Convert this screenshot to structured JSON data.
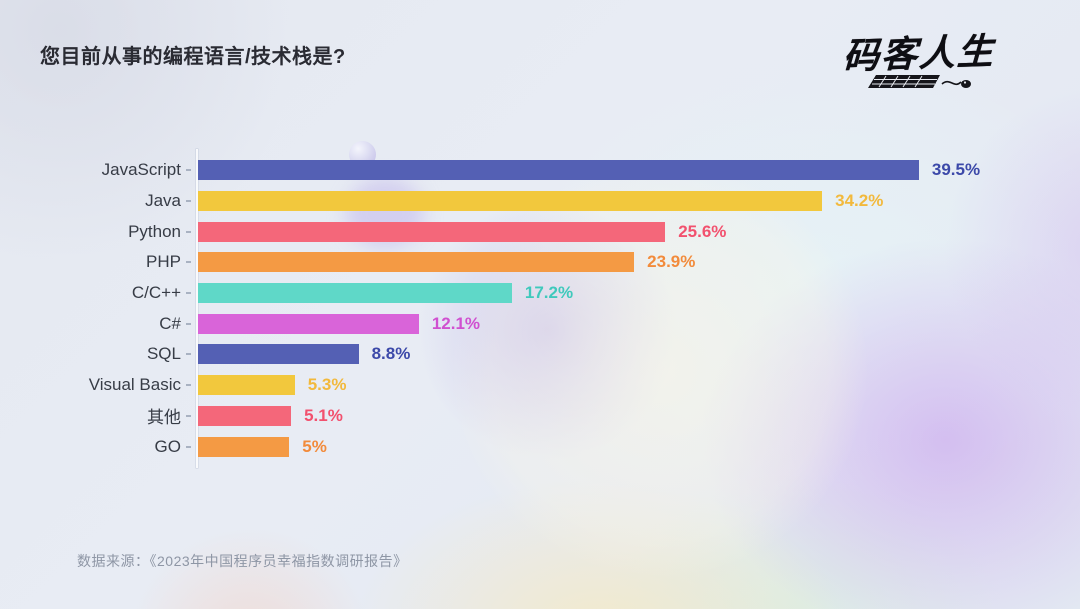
{
  "header": {
    "title": "您目前从事的编程语言/技术栈是?",
    "logo_text": "码客人生"
  },
  "footer": {
    "source": "数据来源：《2023年中国程序员幸福指数调研报告》"
  },
  "chart_data": {
    "type": "bar",
    "orientation": "horizontal",
    "title": "您目前从事的编程语言/技术栈是?",
    "categories": [
      "JavaScript",
      "Java",
      "Python",
      "PHP",
      "C/C++",
      "C#",
      "SQL",
      "Visual Basic",
      "其他",
      "GO"
    ],
    "values": [
      39.5,
      34.2,
      25.6,
      23.9,
      17.2,
      12.1,
      8.8,
      5.3,
      5.1,
      5
    ],
    "value_labels": [
      "39.5%",
      "34.2%",
      "25.6%",
      "23.9%",
      "17.2%",
      "12.1%",
      "8.8%",
      "5.3%",
      "5.1%",
      "5%"
    ],
    "bar_colors": [
      "#5460b4",
      "#f2c83d",
      "#f4677a",
      "#f49a44",
      "#5fd8c8",
      "#d964d9",
      "#5460b4",
      "#f2c83d",
      "#f4677a",
      "#f49a44"
    ],
    "value_label_colors": [
      "#3c49a9",
      "#f2b93c",
      "#f2516e",
      "#f28b3b",
      "#3fc9bc",
      "#d050d0",
      "#3c49a9",
      "#f2b93c",
      "#f2516e",
      "#f28b3b"
    ],
    "xlim": [
      0,
      44
    ],
    "grid": false,
    "legend": false,
    "value_labels_shown": true,
    "source": "数据来源：《2023年中国程序员幸福指数调研报告》"
  }
}
